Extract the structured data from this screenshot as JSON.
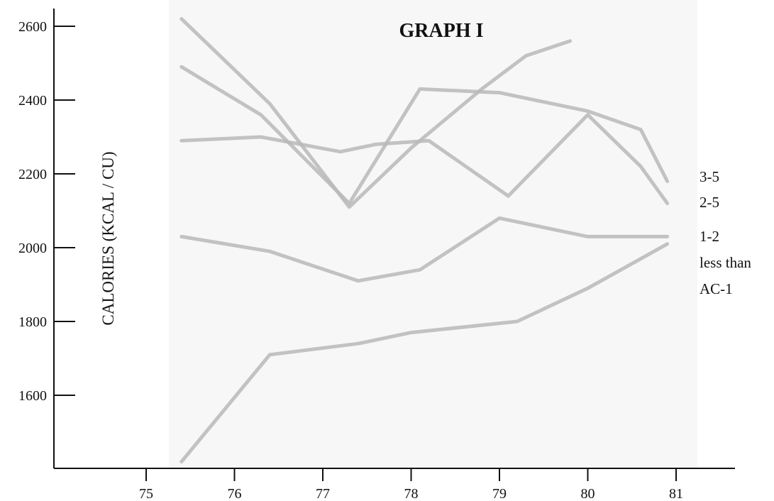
{
  "chart_data": {
    "type": "line",
    "title": "GRAPH I",
    "ylabel": "CALORIES (KCAL / CU)",
    "xlabel": "",
    "xlim": [
      74.0,
      81.2
    ],
    "ylim": [
      1420,
      2635
    ],
    "x_ticks": [
      75,
      76,
      77,
      78,
      79,
      80,
      81
    ],
    "y_ticks": [
      1600,
      1800,
      2000,
      2200,
      2400,
      2600
    ],
    "series_color": "#b8b8b8",
    "axis_color": "#111111",
    "shade_color": "#f7f7f7",
    "series": [
      {
        "x": [
          75.4,
          76.4,
          77.3,
          78.0,
          78.8,
          79.3,
          79.8
        ],
        "y": [
          2620,
          2390,
          2110,
          2270,
          2430,
          2520,
          2560
        ]
      },
      {
        "x": [
          75.4,
          76.3,
          77.3,
          78.1,
          79.0,
          80.0,
          80.6,
          80.9
        ],
        "y": [
          2490,
          2360,
          2120,
          2430,
          2420,
          2370,
          2320,
          2180
        ]
      },
      {
        "x": [
          75.4,
          76.3,
          77.2,
          77.6,
          78.2,
          79.1,
          80.0,
          80.6,
          80.9
        ],
        "y": [
          2290,
          2300,
          2260,
          2280,
          2290,
          2140,
          2360,
          2220,
          2120
        ]
      },
      {
        "x": [
          75.4,
          76.4,
          77.4,
          78.1,
          79.0,
          80.0,
          80.9
        ],
        "y": [
          2030,
          1990,
          1910,
          1940,
          2080,
          2030,
          2030
        ]
      },
      {
        "x": [
          75.4,
          76.4,
          77.4,
          78.0,
          79.2,
          80.0,
          80.9
        ],
        "y": [
          1420,
          1710,
          1740,
          1770,
          1800,
          1890,
          2010
        ]
      }
    ],
    "end_labels": [
      "3-5",
      "2-5",
      "1-2",
      "less than",
      "AC-1"
    ]
  }
}
